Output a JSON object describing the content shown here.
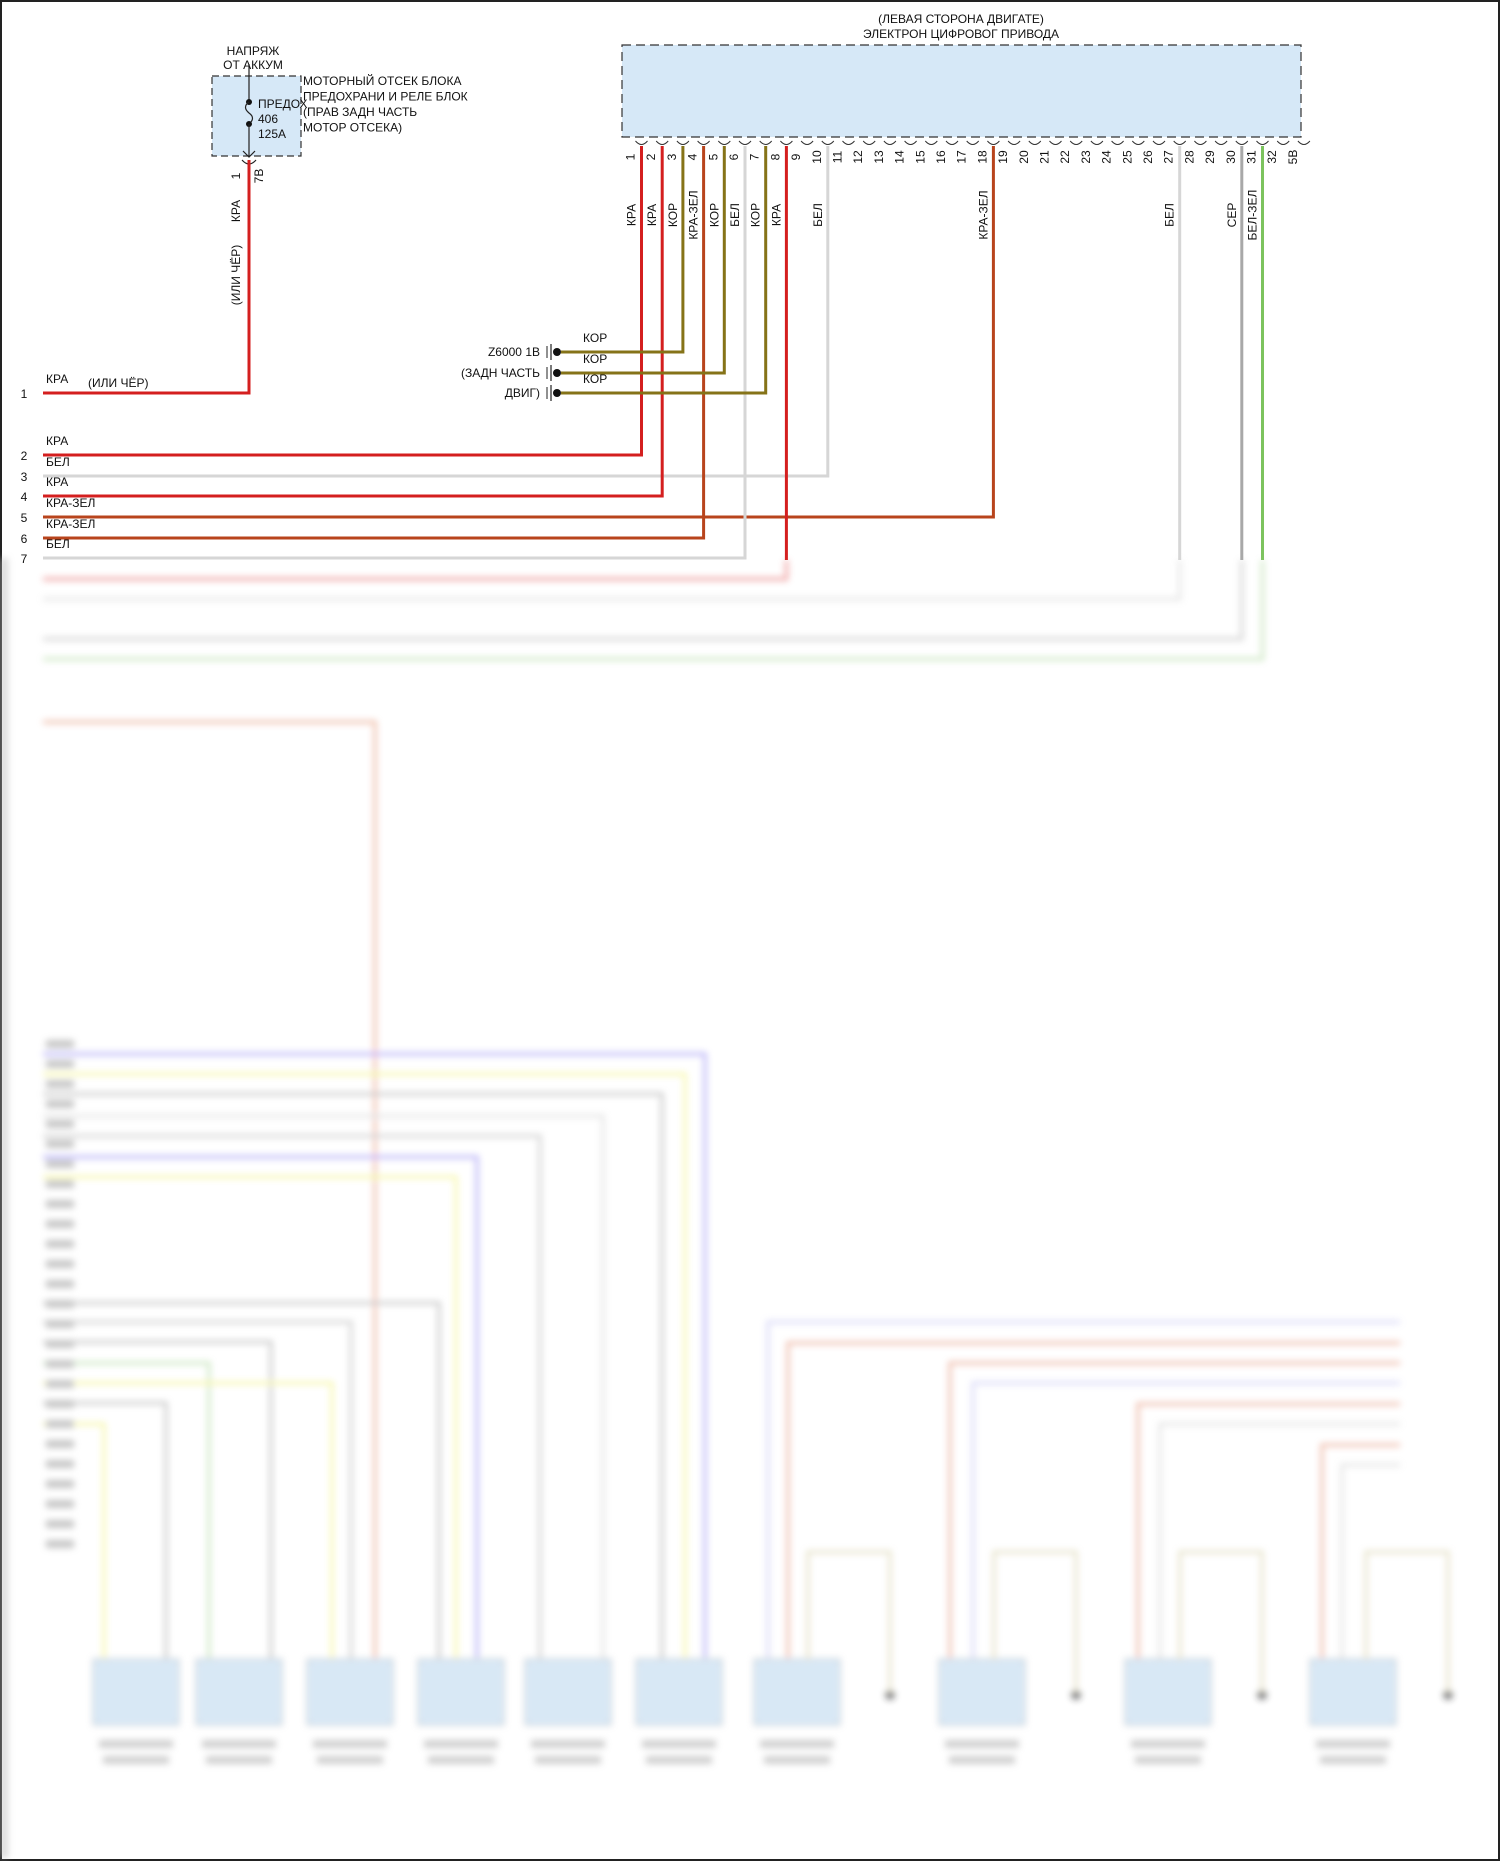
{
  "fuse_block": {
    "supply_label": [
      "НАПРЯЖ",
      "ОТ АККУМ"
    ],
    "block_label": [
      "МОТОРНЫЙ ОТСЕК БЛОКА",
      "ПРЕДОХРАНИ И РЕЛЕ БЛОК",
      "(ПРАВ ЗАДН ЧАСТЬ",
      "МОТОР ОТСЕКА)"
    ],
    "fuse_label": [
      "ПРЕДОХ",
      "406",
      "125А"
    ],
    "pin": "1",
    "connector": "7В",
    "wire_label": "КРА",
    "wire_alt_label": "(ИЛИ ЧЁР)"
  },
  "ecu": {
    "title": [
      "(ЛЕВАЯ СТОРОНА ДВИГАТЕ)",
      "ЭЛЕКТРОН ЦИФРОВОГ ПРИВОДА"
    ],
    "connector": "5В",
    "pins": [
      {
        "pin": "1",
        "wire": "КРА"
      },
      {
        "pin": "2",
        "wire": "КРА"
      },
      {
        "pin": "3",
        "wire": "КОР"
      },
      {
        "pin": "4",
        "wire": "КРА-ЗЕЛ"
      },
      {
        "pin": "5",
        "wire": "КОР"
      },
      {
        "pin": "6",
        "wire": "БЕЛ"
      },
      {
        "pin": "7",
        "wire": "КОР"
      },
      {
        "pin": "8",
        "wire": "КРА"
      },
      {
        "pin": "9",
        "wire": ""
      },
      {
        "pin": "10",
        "wire": "БЕЛ"
      },
      {
        "pin": "11",
        "wire": ""
      },
      {
        "pin": "12",
        "wire": ""
      },
      {
        "pin": "13",
        "wire": ""
      },
      {
        "pin": "14",
        "wire": ""
      },
      {
        "pin": "15",
        "wire": ""
      },
      {
        "pin": "16",
        "wire": ""
      },
      {
        "pin": "17",
        "wire": ""
      },
      {
        "pin": "18",
        "wire": "КРА-ЗЕЛ"
      },
      {
        "pin": "19",
        "wire": ""
      },
      {
        "pin": "20",
        "wire": ""
      },
      {
        "pin": "21",
        "wire": ""
      },
      {
        "pin": "22",
        "wire": ""
      },
      {
        "pin": "23",
        "wire": ""
      },
      {
        "pin": "24",
        "wire": ""
      },
      {
        "pin": "25",
        "wire": ""
      },
      {
        "pin": "26",
        "wire": ""
      },
      {
        "pin": "27",
        "wire": "БЕЛ"
      },
      {
        "pin": "28",
        "wire": ""
      },
      {
        "pin": "29",
        "wire": ""
      },
      {
        "pin": "30",
        "wire": "СЕР"
      },
      {
        "pin": "31",
        "wire": "БЕЛ-ЗЕЛ"
      },
      {
        "pin": "32",
        "wire": ""
      }
    ]
  },
  "ground": {
    "label": [
      "Z6000 1В",
      "(ЗАДН ЧАСТЬ",
      "ДВИГ)"
    ],
    "wires": [
      "КОР",
      "КОР",
      "КОР"
    ]
  },
  "rows": [
    {
      "num": "1",
      "wire": "КРА",
      "note": "(ИЛИ ЧЁР)"
    },
    {
      "num": "2",
      "wire": "КРА"
    },
    {
      "num": "3",
      "wire": "БЕЛ"
    },
    {
      "num": "4",
      "wire": "КРА"
    },
    {
      "num": "5",
      "wire": "КРА-ЗЕЛ"
    },
    {
      "num": "6",
      "wire": "КРА-ЗЕЛ"
    },
    {
      "num": "7",
      "wire": "БЕЛ"
    }
  ],
  "wire_colors": {
    "КРА": "#d41f1f",
    "КОР": "#857318",
    "БЕЛ": "#d6d6d6",
    "КРА-ЗЕЛ": "#b8441c",
    "СЕР": "#a8a8a8",
    "БЕЛ-ЗЕЛ": "#7cc35e"
  },
  "module_fill": "#d6e8f7"
}
